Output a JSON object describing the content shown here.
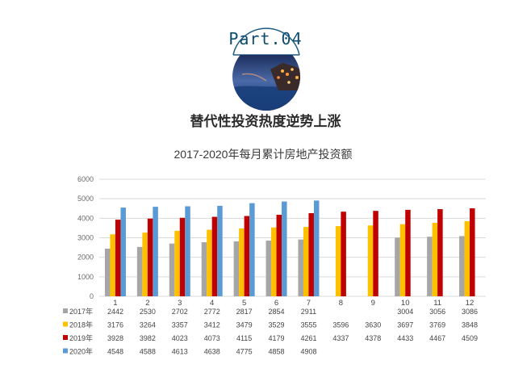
{
  "header": {
    "part_label": "Part.04",
    "heading": "替代性投资热度逆势上涨"
  },
  "colors": {
    "ring": "#1e5b83",
    "2017年": "#a6a6a6",
    "2018年": "#ffc000",
    "2019年": "#c00000",
    "2020年": "#5b9bd5"
  },
  "chart_data": {
    "type": "bar",
    "title": "2017-2020年每月累计房地产投资额",
    "categories": [
      "1",
      "2",
      "3",
      "4",
      "5",
      "6",
      "7",
      "8",
      "9",
      "10",
      "11",
      "12"
    ],
    "ylim": [
      0,
      6000
    ],
    "yticks": [
      "0",
      "1000",
      "2000",
      "3000",
      "4000",
      "5000",
      "6000"
    ],
    "grid": true,
    "legend": "bottom-left data table",
    "series": [
      {
        "name": "2017年",
        "values": [
          2442,
          2530,
          2702,
          2772,
          2817,
          2854,
          2911,
          null,
          null,
          3004,
          3056,
          3086
        ]
      },
      {
        "name": "2018年",
        "values": [
          3176,
          3264,
          3357,
          3412,
          3479,
          3529,
          3555,
          3596,
          3630,
          3697,
          3769,
          3848
        ]
      },
      {
        "name": "2019年",
        "values": [
          3928,
          3982,
          4023,
          4073,
          4115,
          4179,
          4261,
          4337,
          4378,
          4433,
          4467,
          4509
        ]
      },
      {
        "name": "2020年",
        "values": [
          4548,
          4588,
          4613,
          4638,
          4775,
          4858,
          4908,
          null,
          null,
          null,
          null,
          null
        ]
      }
    ]
  }
}
